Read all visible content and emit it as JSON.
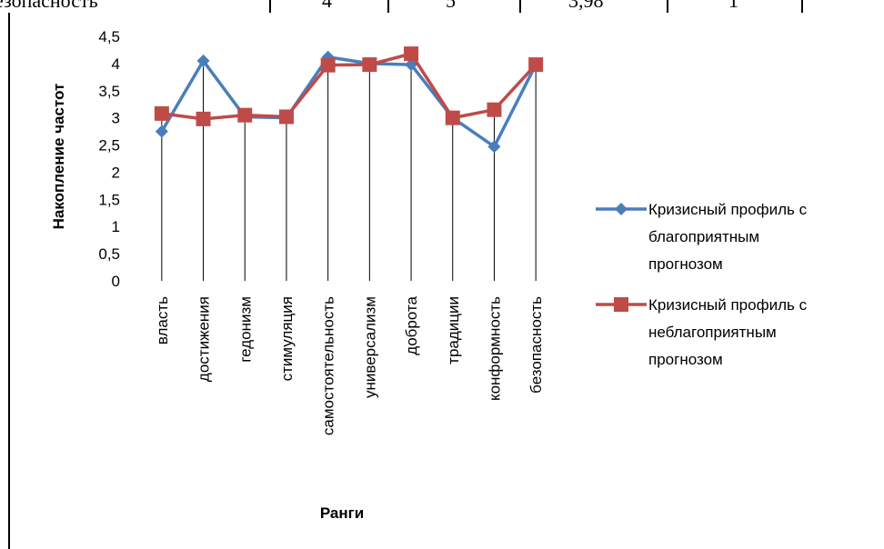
{
  "table_fragment": {
    "cells": [
      "езопасность",
      "4",
      "5",
      "3,98",
      "1",
      ""
    ]
  },
  "chart_data": {
    "type": "line",
    "title": "",
    "xlabel": "Ранги",
    "ylabel": "Накопление частот",
    "ylim": [
      0,
      4.5
    ],
    "yticks": [
      "0",
      "0,5",
      "1",
      "1,5",
      "2",
      "2,5",
      "3",
      "3,5",
      "4",
      "4,5"
    ],
    "categories": [
      "власть",
      "достижения",
      "гедонизм",
      "стимуляция",
      "самостоятельность",
      "универсализм",
      "доброта",
      "традиции",
      "конформность",
      "безопасность"
    ],
    "grid": "vertical drop lines at each category",
    "legend": "right",
    "series": [
      {
        "name": "Кризисный профиль с благоприятным прогнозом",
        "legend_lines": [
          "Кризисный профиль с",
          "благоприятным",
          "прогнозом"
        ],
        "marker": "diamond",
        "color": "#4a7ebb",
        "values": [
          2.75,
          4.05,
          3.02,
          3.0,
          4.12,
          4.0,
          3.98,
          3.0,
          2.47,
          3.98
        ]
      },
      {
        "name": "Кризисный профиль с неблагоприятным прогнозом",
        "legend_lines": [
          "Кризисный профиль с",
          "неблагоприятным",
          "прогнозом"
        ],
        "marker": "square",
        "color": "#be4b48",
        "values": [
          3.08,
          2.98,
          3.05,
          3.02,
          3.97,
          3.98,
          4.18,
          3.0,
          3.15,
          3.98
        ]
      }
    ]
  }
}
